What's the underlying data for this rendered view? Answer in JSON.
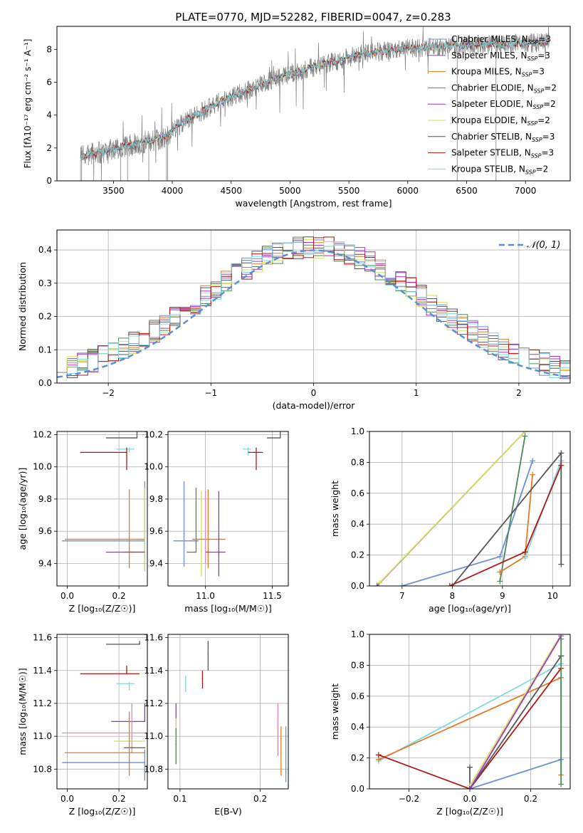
{
  "page_title": "PLATE=0770, MJD=52282, FIBERID=0047, z=0.283",
  "colors": {
    "Chabrier MILES": "#6a8fd8",
    "Salpeter MILES": "#a338c8",
    "Kroupa MILES": "#e07a2a",
    "Chabrier ELODIE": "#4a8a5a",
    "Salpeter ELODIE": "#a030c0",
    "Kroupa ELODIE": "#d4e060",
    "Chabrier STELIB": "#555555",
    "Salpeter STELIB": "#b01818",
    "Kroupa STELIB": "#80d8e0",
    "Pink": "#e08ab8",
    "Data": "#808080",
    "Normal": "#5b8ed6"
  },
  "chart_data": [
    {
      "id": "spectrum",
      "type": "line",
      "title": "",
      "xlabel": "wavelength [Angstrom, rest frame]",
      "ylabel": "Flux [fλ10⁻¹⁷ erg cm⁻² s⁻¹ A⁻¹]",
      "xlim": [
        3020,
        7380
      ],
      "ylim": [
        0,
        9.4
      ],
      "xticks": [
        3500,
        4000,
        4500,
        5000,
        5500,
        6000,
        6500,
        7000
      ],
      "yticks": [
        0,
        2,
        4,
        6,
        8
      ],
      "grid": false,
      "legend_position": "top-right",
      "legend": [
        {
          "label": "Chabrier MILES, N",
          "sub": "SSP",
          "tail": "=3",
          "color": "Chabrier MILES"
        },
        {
          "label": "Salpeter MILES, N",
          "sub": "SSP",
          "tail": "=3",
          "color": "Salpeter MILES"
        },
        {
          "label": "Kroupa MILES, N",
          "sub": "SSP",
          "tail": "=3",
          "color": "Kroupa MILES"
        },
        {
          "label": "Chabrier ELODIE, N",
          "sub": "SSP",
          "tail": "=2",
          "color": "Chabrier ELODIE"
        },
        {
          "label": "Salpeter ELODIE, N",
          "sub": "SSP",
          "tail": "=2",
          "color": "Salpeter ELODIE"
        },
        {
          "label": "Kroupa ELODIE, N",
          "sub": "SSP",
          "tail": "=2",
          "color": "Kroupa ELODIE"
        },
        {
          "label": "Chabrier STELIB, N",
          "sub": "SSP",
          "tail": "=3",
          "color": "Chabrier STELIB"
        },
        {
          "label": "Salpeter STELIB, N",
          "sub": "SSP",
          "tail": "=3",
          "color": "Salpeter STELIB"
        },
        {
          "label": "Kroupa STELIB, N",
          "sub": "SSP",
          "tail": "=2",
          "color": "Kroupa STELIB"
        }
      ],
      "continuum": {
        "x": [
          3220,
          3300,
          3400,
          3500,
          3600,
          3700,
          3800,
          3900,
          4000,
          4100,
          4200,
          4300,
          4400,
          4500,
          4600,
          4700,
          4800,
          4900,
          5000,
          5100,
          5200,
          5300,
          5400,
          5500,
          5600,
          5700,
          5800,
          5900,
          6000,
          6100,
          6200,
          6300,
          6400,
          6500,
          6600,
          6700,
          6800,
          6900,
          7000,
          7100,
          7200
        ],
        "y": [
          1.45,
          1.6,
          1.75,
          1.95,
          2.1,
          2.25,
          2.4,
          2.6,
          3.0,
          3.6,
          4.0,
          4.4,
          4.8,
          5.1,
          5.4,
          5.7,
          6.0,
          6.3,
          6.5,
          6.7,
          6.9,
          7.1,
          7.3,
          7.5,
          7.7,
          7.8,
          7.9,
          8.0,
          8.05,
          8.1,
          8.15,
          8.2,
          8.2,
          8.25,
          8.25,
          8.3,
          8.3,
          8.35,
          8.35,
          8.4,
          8.4
        ]
      },
      "drops": [
        3230,
        3560,
        3620,
        3800,
        3950,
        3960,
        6420,
        6750
      ]
    },
    {
      "id": "residuals",
      "type": "histogram",
      "title": "",
      "xlabel": "(data-model)/error",
      "ylabel": "Normed distribution",
      "xlim": [
        -2.5,
        2.5
      ],
      "ylim": [
        0,
        0.46
      ],
      "xticks": [
        -2,
        -1,
        0,
        1,
        2
      ],
      "yticks": [
        0.0,
        0.1,
        0.2,
        0.3,
        0.4
      ],
      "grid": true,
      "legend_position": "top-right",
      "legend": [
        {
          "label": "𝒩(0, 1)",
          "color": "Normal"
        }
      ],
      "bins": {
        "start": -2.5,
        "width": 0.1,
        "count": 50
      }
    },
    {
      "id": "age_vs_z",
      "type": "scatter",
      "title": "",
      "xlabel": "Z [log₁₀(Z/Z☉)]",
      "ylabel": "age  [log₁₀(age/yr)]",
      "xlim": [
        -0.04,
        0.31
      ],
      "ylim": [
        9.26,
        10.22
      ],
      "xticks": [
        0.0,
        0.2
      ],
      "yticks": [
        9.4,
        9.6,
        9.8,
        10.0,
        10.2
      ],
      "grid": true,
      "points": [
        {
          "x": 0.27,
          "y": 10.18,
          "xerr": [
            0.12,
            0.0
          ],
          "yerr": [
            0.0,
            0.04
          ],
          "color": "Chabrier STELIB"
        },
        {
          "x": 0.24,
          "y": 10.11,
          "xerr": [
            0.05,
            0.02
          ],
          "yerr": [
            0.02,
            0.01
          ],
          "color": "Kroupa STELIB"
        },
        {
          "x": 0.23,
          "y": 10.09,
          "xerr": [
            0.18,
            0.0
          ],
          "yerr": [
            0.11,
            0.03
          ],
          "color": "Salpeter STELIB"
        },
        {
          "x": 0.3,
          "y": 9.54,
          "xerr": [
            0.32,
            0.0
          ],
          "yerr": [
            0.16,
            0.37
          ],
          "color": "Chabrier MILES"
        },
        {
          "x": 0.24,
          "y": 9.55,
          "xerr": [
            0.25,
            0.06
          ],
          "yerr": [
            0.18,
            0.31
          ],
          "color": "Kroupa MILES"
        },
        {
          "x": 0.3,
          "y": 9.47,
          "xerr": [
            0.08,
            0.0
          ],
          "yerr": [
            0.12,
            0.4
          ],
          "color": "Chabrier ELODIE"
        },
        {
          "x": 0.3,
          "y": 9.47,
          "xerr": [
            0.08,
            0.0
          ],
          "yerr": [
            0.12,
            0.4
          ],
          "color": "Kroupa ELODIE"
        },
        {
          "x": 0.2,
          "y": 9.47,
          "xerr": [
            0.05,
            0.1
          ],
          "yerr": [
            0.0,
            0.0
          ],
          "color": "Salpeter ELODIE"
        }
      ]
    },
    {
      "id": "age_vs_mass",
      "type": "scatter",
      "title": "",
      "xlabel": "mass [log₁₀(M/M☉)]",
      "ylabel": "",
      "xlim": [
        10.72,
        11.62
      ],
      "ylim": [
        9.26,
        10.22
      ],
      "xticks": [
        11.0,
        11.5
      ],
      "yticks": [
        9.4,
        9.6,
        9.8,
        10.0,
        10.2
      ],
      "grid": true,
      "points": [
        {
          "x": 11.56,
          "y": 10.18,
          "xerr": [
            0.1,
            0.0
          ],
          "yerr": [
            0.0,
            0.05
          ],
          "color": "Chabrier STELIB"
        },
        {
          "x": 11.32,
          "y": 10.11,
          "xerr": [
            0.04,
            0.02
          ],
          "yerr": [
            0.04,
            0.01
          ],
          "color": "Kroupa STELIB"
        },
        {
          "x": 11.38,
          "y": 10.09,
          "xerr": [
            0.06,
            0.05
          ],
          "yerr": [
            0.11,
            0.03
          ],
          "color": "Salpeter STELIB"
        },
        {
          "x": 10.84,
          "y": 9.54,
          "xerr": [
            0.08,
            0.11
          ],
          "yerr": [
            0.16,
            0.37
          ],
          "color": "Chabrier MILES"
        },
        {
          "x": 10.93,
          "y": 9.47,
          "xerr": [
            0.07,
            0.0
          ],
          "yerr": [
            0.0,
            0.4
          ],
          "color": "Chabrier ELODIE"
        },
        {
          "x": 10.97,
          "y": 9.47,
          "xerr": [
            0.0,
            0.0
          ],
          "yerr": [
            0.15,
            0.38
          ],
          "color": "Kroupa ELODIE"
        },
        {
          "x": 11.02,
          "y": 9.55,
          "xerr": [
            0.12,
            0.13
          ],
          "yerr": [
            0.18,
            0.31
          ],
          "color": "Kroupa MILES"
        },
        {
          "x": 11.1,
          "y": 9.47,
          "xerr": [
            0.1,
            0.05
          ],
          "yerr": [
            0.15,
            0.38
          ],
          "color": "Salpeter ELODIE"
        },
        {
          "x": 11.0,
          "y": 9.5,
          "xerr": [
            0.0,
            0.0
          ],
          "yerr": [
            0.1,
            0.35
          ],
          "color": "Pink"
        }
      ]
    },
    {
      "id": "mw_vs_age",
      "type": "line",
      "title": "",
      "xlabel": "age  [log₁₀(age/yr)]",
      "ylabel": "mass weight",
      "xlim": [
        6.35,
        10.35
      ],
      "ylim": [
        0,
        1.0
      ],
      "xticks": [
        7,
        8,
        9,
        10
      ],
      "yticks": [
        0.0,
        0.2,
        0.4,
        0.6,
        0.8,
        1.0
      ],
      "grid": true,
      "series": [
        {
          "color": "Chabrier MILES",
          "x": [
            7.0,
            8.95,
            9.6
          ],
          "y": [
            0.0,
            0.19,
            0.81
          ]
        },
        {
          "color": "Salpeter MILES",
          "x": [
            6.5,
            9.45
          ],
          "y": [
            0.0,
            1.0
          ]
        },
        {
          "color": "Kroupa ELODIE",
          "x": [
            6.55,
            9.45
          ],
          "y": [
            0.02,
            1.0
          ]
        },
        {
          "color": "Chabrier ELODIE",
          "x": [
            8.95,
            9.45
          ],
          "y": [
            0.03,
            0.97
          ]
        },
        {
          "color": "Kroupa MILES",
          "x": [
            8.95,
            9.45,
            9.6
          ],
          "y": [
            0.09,
            0.19,
            0.72
          ]
        },
        {
          "color": "Kroupa STELIB",
          "x": [
            9.45,
            10.17
          ],
          "y": [
            0.18,
            0.81
          ]
        },
        {
          "color": "Chabrier STELIB",
          "x": [
            8.0,
            10.17,
            10.17
          ],
          "y": [
            0.0,
            0.86,
            0.14
          ]
        },
        {
          "color": "Salpeter STELIB",
          "x": [
            7.95,
            9.45,
            10.17
          ],
          "y": [
            0.0,
            0.22,
            0.78
          ]
        }
      ]
    },
    {
      "id": "mass_vs_z",
      "type": "scatter",
      "title": "",
      "xlabel": "Z [log₁₀(Z/Z☉)]",
      "ylabel": "mass [log₁₀(M/M☉)]",
      "xlim": [
        -0.04,
        0.31
      ],
      "ylim": [
        10.68,
        11.62
      ],
      "xticks": [
        0.0,
        0.2
      ],
      "yticks": [
        10.8,
        11.0,
        11.2,
        11.4,
        11.6
      ],
      "grid": true,
      "points": [
        {
          "x": 0.28,
          "y": 11.56,
          "xerr": [
            0.13,
            0.0
          ],
          "yerr": [
            0.0,
            0.02
          ],
          "color": "Chabrier STELIB"
        },
        {
          "x": 0.23,
          "y": 11.38,
          "xerr": [
            0.18,
            0.05
          ],
          "yerr": [
            0.0,
            0.05
          ],
          "color": "Salpeter STELIB"
        },
        {
          "x": 0.24,
          "y": 11.32,
          "xerr": [
            0.05,
            0.02
          ],
          "yerr": [
            0.04,
            0.01
          ],
          "color": "Kroupa STELIB"
        },
        {
          "x": 0.3,
          "y": 11.09,
          "xerr": [
            0.13,
            0.0
          ],
          "yerr": [
            0.0,
            0.11
          ],
          "color": "Salpeter ELODIE"
        },
        {
          "x": 0.25,
          "y": 11.02,
          "xerr": [
            0.27,
            0.05
          ],
          "yerr": [
            0.12,
            0.18
          ],
          "color": "Pink"
        },
        {
          "x": 0.3,
          "y": 10.97,
          "xerr": [
            0.12,
            0.0
          ],
          "yerr": [
            0.0,
            0.0
          ],
          "color": "Kroupa ELODIE"
        },
        {
          "x": 0.3,
          "y": 10.93,
          "xerr": [
            0.08,
            0.0
          ],
          "yerr": [
            0.0,
            0.0
          ],
          "color": "Chabrier STELIB"
        },
        {
          "x": 0.24,
          "y": 10.9,
          "xerr": [
            0.25,
            0.06
          ],
          "yerr": [
            0.14,
            0.25
          ],
          "color": "Kroupa MILES"
        },
        {
          "x": 0.3,
          "y": 10.84,
          "xerr": [
            0.32,
            0.0
          ],
          "yerr": [
            0.11,
            0.08
          ],
          "color": "Chabrier MILES"
        }
      ]
    },
    {
      "id": "mass_vs_ebv",
      "type": "scatter",
      "title": "",
      "xlabel": "E(B-V)",
      "ylabel": "",
      "xlim": [
        0.085,
        0.235
      ],
      "ylim": [
        10.68,
        11.62
      ],
      "xticks": [
        0.1,
        0.2
      ],
      "yticks": [
        10.8,
        11.0,
        11.2,
        11.4,
        11.6
      ],
      "grid": true,
      "points": [
        {
          "x": 0.135,
          "y": 11.5,
          "xerr": [
            0,
            0
          ],
          "yerr": [
            0.1,
            0.08
          ],
          "color": "Chabrier STELIB"
        },
        {
          "x": 0.128,
          "y": 11.35,
          "xerr": [
            0,
            0
          ],
          "yerr": [
            0.06,
            0.05
          ],
          "color": "Salpeter STELIB"
        },
        {
          "x": 0.107,
          "y": 11.32,
          "xerr": [
            0,
            0
          ],
          "yerr": [
            0.05,
            0.05
          ],
          "color": "Kroupa STELIB"
        },
        {
          "x": 0.095,
          "y": 11.1,
          "xerr": [
            0,
            0
          ],
          "yerr": [
            0.1,
            0.1
          ],
          "color": "Salpeter ELODIE"
        },
        {
          "x": 0.095,
          "y": 10.97,
          "xerr": [
            0,
            0
          ],
          "yerr": [
            0.12,
            0.14
          ],
          "color": "Kroupa ELODIE"
        },
        {
          "x": 0.095,
          "y": 10.95,
          "xerr": [
            0,
            0
          ],
          "yerr": [
            0.12,
            0.1
          ],
          "color": "Chabrier ELODIE"
        },
        {
          "x": 0.222,
          "y": 11.05,
          "xerr": [
            0,
            0
          ],
          "yerr": [
            0.17,
            0.15
          ],
          "color": "Pink"
        },
        {
          "x": 0.226,
          "y": 10.9,
          "xerr": [
            0,
            0
          ],
          "yerr": [
            0.14,
            0.16
          ],
          "color": "Kroupa MILES"
        },
        {
          "x": 0.232,
          "y": 10.88,
          "xerr": [
            0,
            0
          ],
          "yerr": [
            0.16,
            0.18
          ],
          "color": "Chabrier MILES"
        }
      ]
    },
    {
      "id": "mw_vs_z",
      "type": "line",
      "title": "",
      "xlabel": "Z [log₁₀(Z/Z☉)]",
      "ylabel": "mass weight",
      "xlim": [
        -0.33,
        0.33
      ],
      "ylim": [
        0,
        1.0
      ],
      "xticks": [
        -0.2,
        0.0,
        0.2
      ],
      "yticks": [
        0.0,
        0.2,
        0.4,
        0.6,
        0.8,
        1.0
      ],
      "grid": true,
      "series": [
        {
          "color": "Kroupa STELIB",
          "x": [
            -0.3,
            0.3
          ],
          "y": [
            0.18,
            0.81
          ]
        },
        {
          "color": "Kroupa MILES",
          "x": [
            -0.3,
            0.3,
            0.3
          ],
          "y": [
            0.19,
            0.72,
            0.09
          ]
        },
        {
          "color": "Salpeter STELIB",
          "x": [
            -0.3,
            0.0,
            0.3
          ],
          "y": [
            0.22,
            0.0,
            0.78
          ]
        },
        {
          "color": "Chabrier MILES",
          "x": [
            0.0,
            0.3
          ],
          "y": [
            0.0,
            0.19
          ]
        },
        {
          "color": "Chabrier STELIB",
          "x": [
            0.0,
            0.0,
            0.3,
            0.3
          ],
          "y": [
            0.14,
            0.0,
            0.86,
            0.86
          ]
        },
        {
          "color": "Kroupa ELODIE",
          "x": [
            0.0,
            0.3
          ],
          "y": [
            0.02,
            1.0
          ]
        },
        {
          "color": "Salpeter MILES",
          "x": [
            0.0,
            0.3
          ],
          "y": [
            0.0,
            0.99
          ]
        },
        {
          "color": "Chabrier ELODIE",
          "x": [
            0.3,
            0.3
          ],
          "y": [
            0.03,
            0.97
          ]
        }
      ]
    }
  ]
}
